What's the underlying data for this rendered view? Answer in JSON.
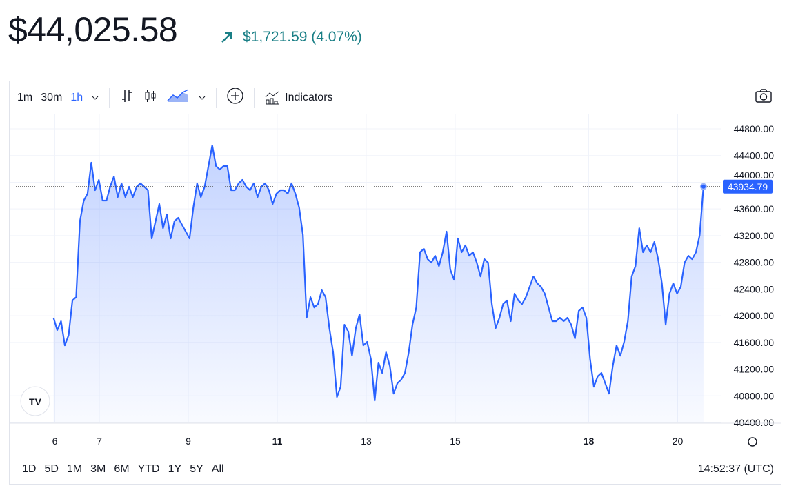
{
  "header": {
    "price": "$44,025.58",
    "change": "$1,721.59 (4.07%)",
    "accent": "#1a7f86"
  },
  "toolbar": {
    "intervals": [
      "1m",
      "30m",
      "1h"
    ],
    "active_interval": "1h",
    "indicators_label": "Indicators"
  },
  "range": {
    "buttons": [
      "1D",
      "5D",
      "1M",
      "3M",
      "6M",
      "YTD",
      "1Y",
      "5Y",
      "All"
    ],
    "time": "14:52:37 (UTC)"
  },
  "chart_data": {
    "type": "area",
    "line_color": "#2962ff",
    "x_start_day": 5.97,
    "x_end_day": 20.58,
    "x_ticks": [
      6,
      7,
      9,
      11,
      13,
      15,
      18,
      20
    ],
    "x_tick_labels": [
      "6",
      "7",
      "9",
      "11",
      "13",
      "15",
      "18",
      "20"
    ],
    "bold_ticks": [
      11,
      18
    ],
    "ylim": [
      40400,
      44850
    ],
    "y_ticks": [
      40400,
      40800,
      41200,
      41600,
      42000,
      42400,
      42800,
      43200,
      43600,
      44000,
      44400,
      44800
    ],
    "y_tick_labels": [
      "40400.00",
      "40800.00",
      "41200.00",
      "41600.00",
      "42000.00",
      "42400.00",
      "42800.00",
      "43200.00",
      "43600.00",
      "44000.00",
      "44400.00",
      "44800.00"
    ],
    "last_value": "43934.79",
    "last": 43934.79,
    "values": [
      41970,
      41784,
      41918,
      41556,
      41711,
      42228,
      42279,
      43416,
      43726,
      43829,
      44294,
      43881,
      44036,
      43726,
      43726,
      43932,
      44087,
      43777,
      43984,
      43777,
      43932,
      43777,
      43932,
      43984,
      43932,
      43881,
      43158,
      43416,
      43674,
      43312,
      43519,
      43158,
      43416,
      43467,
      43364,
      43261,
      43158,
      43622,
      43984,
      43777,
      43932,
      44242,
      44552,
      44242,
      44191,
      44242,
      44242,
      43881,
      43881,
      43984,
      44036,
      43932,
      43881,
      43984,
      43777,
      43932,
      43984,
      43881,
      43674,
      43829,
      43881,
      43881,
      43829,
      43984,
      43829,
      43622,
      43209,
      41970,
      42279,
      42124,
      42176,
      42383,
      42279,
      41815,
      41453,
      40782,
      40936,
      41866,
      41763,
      41401,
      41815,
      42021,
      41556,
      41608,
      41350,
      40730,
      41298,
      41143,
      41453,
      41246,
      40833,
      40988,
      41040,
      41143,
      41453,
      41866,
      42124,
      42951,
      43003,
      42848,
      42796,
      42899,
      42744,
      42951,
      43261,
      42693,
      42538,
      43158,
      42951,
      43054,
      42899,
      42951,
      42796,
      42589,
      42848,
      42796,
      42176,
      41815,
      41970,
      42176,
      42228,
      41918,
      42331,
      42228,
      42176,
      42279,
      42434,
      42589,
      42486,
      42434,
      42331,
      42124,
      41918,
      41918,
      41970,
      41918,
      41970,
      41866,
      41660,
      42073,
      42124,
      41970,
      41350,
      40936,
      41091,
      41143,
      40988,
      40833,
      41246,
      41556,
      41401,
      41608,
      41918,
      42589,
      42744,
      43312,
      42951,
      43054,
      42951,
      43106,
      42848,
      42486,
      41866,
      42331,
      42486,
      42331,
      42434,
      42796,
      42899,
      42848,
      42951,
      43209,
      43934.79
    ]
  }
}
